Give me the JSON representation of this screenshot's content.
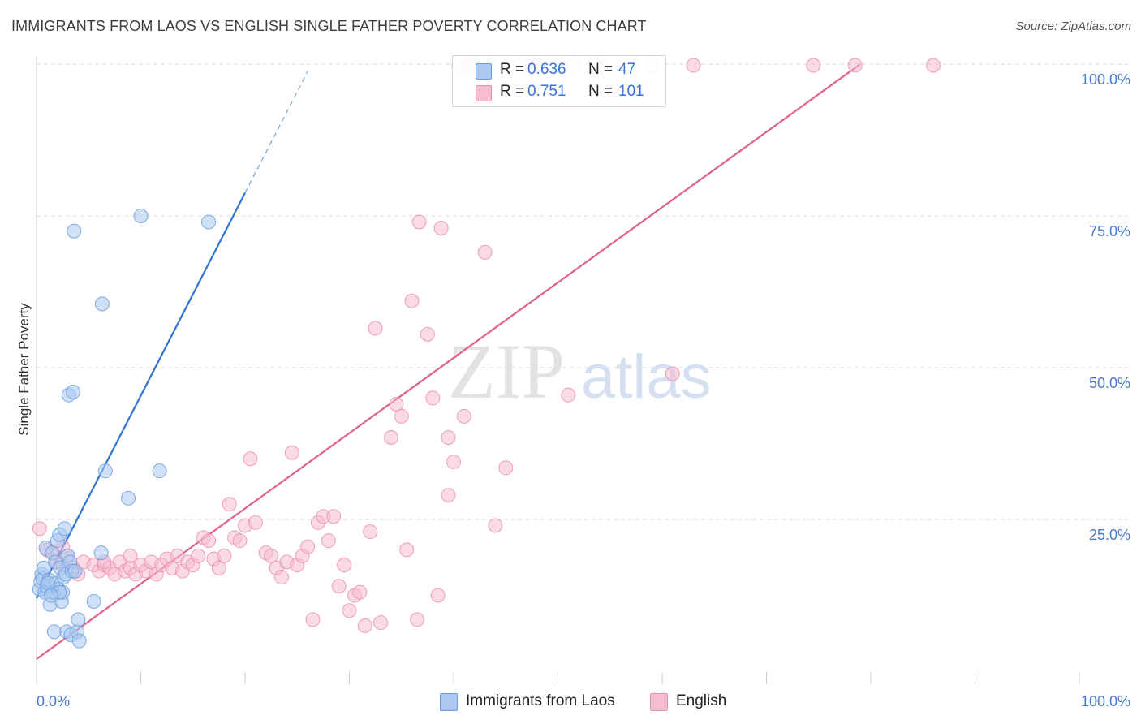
{
  "title": "IMMIGRANTS FROM LAOS VS ENGLISH SINGLE FATHER POVERTY CORRELATION CHART",
  "source": "Source: ZipAtlas.com",
  "watermark": {
    "zip": "ZIP",
    "atlas": "atlas"
  },
  "legend": {
    "rows": [
      {
        "r_label": "R =",
        "r_value": "0.636",
        "n_label": "N =",
        "n_value": "47"
      },
      {
        "r_label": "R =",
        "r_value": "0.751",
        "n_label": "N =",
        "n_value": "101"
      }
    ]
  },
  "bottom_legend": {
    "items": [
      {
        "label": "Immigrants from Laos"
      },
      {
        "label": "English"
      }
    ]
  },
  "colors": {
    "blue_fill": "#aac8f0",
    "blue_stroke": "#6a9ee0",
    "blue_line": "#2f74d0",
    "pink_fill": "#f6bcd0",
    "pink_stroke": "#e890b0",
    "pink_line": "#e0608a",
    "grid": "#dddddd",
    "tick_label": "#4a78c8"
  },
  "chart_data": {
    "type": "scatter",
    "title": "IMMIGRANTS FROM LAOS VS ENGLISH SINGLE FATHER POVERTY CORRELATION CHART",
    "xlabel": "",
    "ylabel": "Single Father Poverty",
    "xlim": [
      0,
      100
    ],
    "ylim": [
      0,
      100
    ],
    "x_tick_labels": [
      "0.0%",
      "100.0%"
    ],
    "y_ticks": [
      25,
      50,
      75,
      100
    ],
    "y_tick_labels": [
      "25.0%",
      "50.0%",
      "75.0%",
      "100.0%"
    ],
    "grid": true,
    "series": [
      {
        "name": "Immigrants from Laos",
        "color": "#aac8f0",
        "R": 0.636,
        "N": 47,
        "trend": {
          "x": [
            0,
            20
          ],
          "y": [
            12.0,
            78.8
          ],
          "dashed_extension": {
            "x": [
              20,
              26
            ],
            "y": [
              78.8,
              98.8
            ]
          }
        },
        "points": [
          [
            0.3,
            13.5
          ],
          [
            0.4,
            14.8
          ],
          [
            0.5,
            16.0
          ],
          [
            0.6,
            15.2
          ],
          [
            0.7,
            17.0
          ],
          [
            0.8,
            13.0
          ],
          [
            0.9,
            20.3
          ],
          [
            1.0,
            14.0
          ],
          [
            1.2,
            15.0
          ],
          [
            1.3,
            11.0
          ],
          [
            1.5,
            19.5
          ],
          [
            1.6,
            13.0
          ],
          [
            1.7,
            6.5
          ],
          [
            1.8,
            18.0
          ],
          [
            1.9,
            14.5
          ],
          [
            2.0,
            21.5
          ],
          [
            2.1,
            13.5
          ],
          [
            2.2,
            22.5
          ],
          [
            2.3,
            17.0
          ],
          [
            2.4,
            11.5
          ],
          [
            2.5,
            13.0
          ],
          [
            2.6,
            15.5
          ],
          [
            2.7,
            23.5
          ],
          [
            2.8,
            16.0
          ],
          [
            2.9,
            6.5
          ],
          [
            3.0,
            19.0
          ],
          [
            3.1,
            45.5
          ],
          [
            3.2,
            18.0
          ],
          [
            3.3,
            6.0
          ],
          [
            3.4,
            16.5
          ],
          [
            3.5,
            46.0
          ],
          [
            3.6,
            72.5
          ],
          [
            3.7,
            16.5
          ],
          [
            3.9,
            6.5
          ],
          [
            4.0,
            8.5
          ],
          [
            4.1,
            5.0
          ],
          [
            5.5,
            11.5
          ],
          [
            6.2,
            19.5
          ],
          [
            6.3,
            60.5
          ],
          [
            6.6,
            33.0
          ],
          [
            8.8,
            28.5
          ],
          [
            10.0,
            75.0
          ],
          [
            11.8,
            33.0
          ],
          [
            16.5,
            74.0
          ],
          [
            1.1,
            14.5
          ],
          [
            2.2,
            13.0
          ],
          [
            1.4,
            12.5
          ]
        ]
      },
      {
        "name": "English",
        "color": "#f6bcd0",
        "R": 0.751,
        "N": 101,
        "trend": {
          "x": [
            0,
            79
          ],
          "y": [
            2.0,
            100.0
          ]
        },
        "points": [
          [
            0.3,
            23.5
          ],
          [
            1.0,
            20.0
          ],
          [
            1.5,
            19.5
          ],
          [
            2.0,
            18.0
          ],
          [
            2.5,
            17.5
          ],
          [
            3.0,
            19.0
          ],
          [
            3.5,
            17.0
          ],
          [
            4.0,
            16.0
          ],
          [
            4.5,
            18.0
          ],
          [
            5.5,
            17.5
          ],
          [
            6.0,
            16.5
          ],
          [
            6.5,
            17.5
          ],
          [
            7.0,
            17.0
          ],
          [
            7.5,
            16.0
          ],
          [
            8.0,
            18.0
          ],
          [
            8.5,
            16.5
          ],
          [
            9.0,
            17.0
          ],
          [
            9.5,
            16.0
          ],
          [
            10.0,
            17.5
          ],
          [
            10.5,
            16.5
          ],
          [
            11.0,
            18.0
          ],
          [
            11.5,
            16.0
          ],
          [
            12.0,
            17.5
          ],
          [
            12.5,
            18.5
          ],
          [
            13.0,
            17.0
          ],
          [
            13.5,
            19.0
          ],
          [
            14.0,
            16.5
          ],
          [
            14.5,
            18.0
          ],
          [
            15.0,
            17.5
          ],
          [
            15.5,
            19.0
          ],
          [
            16.0,
            22.0
          ],
          [
            16.5,
            21.5
          ],
          [
            17.0,
            18.5
          ],
          [
            17.5,
            17.0
          ],
          [
            18.0,
            19.0
          ],
          [
            18.5,
            27.5
          ],
          [
            19.0,
            22.0
          ],
          [
            19.5,
            21.5
          ],
          [
            20.0,
            24.0
          ],
          [
            20.5,
            35.0
          ],
          [
            21.0,
            24.5
          ],
          [
            22.0,
            19.5
          ],
          [
            22.5,
            19.0
          ],
          [
            23.0,
            17.0
          ],
          [
            23.5,
            15.5
          ],
          [
            24.0,
            18.0
          ],
          [
            24.5,
            36.0
          ],
          [
            25.0,
            17.5
          ],
          [
            25.5,
            19.0
          ],
          [
            26.0,
            20.5
          ],
          [
            26.5,
            8.5
          ],
          [
            27.0,
            24.5
          ],
          [
            27.5,
            25.5
          ],
          [
            28.0,
            21.5
          ],
          [
            28.5,
            25.5
          ],
          [
            29.0,
            14.0
          ],
          [
            29.5,
            17.5
          ],
          [
            30.0,
            10.0
          ],
          [
            30.5,
            12.5
          ],
          [
            31.0,
            13.0
          ],
          [
            31.5,
            7.5
          ],
          [
            32.0,
            23.0
          ],
          [
            32.5,
            56.5
          ],
          [
            33.0,
            8.0
          ],
          [
            34.0,
            38.5
          ],
          [
            34.5,
            44.0
          ],
          [
            35.0,
            42.0
          ],
          [
            35.5,
            20.0
          ],
          [
            36.0,
            61.0
          ],
          [
            36.5,
            8.5
          ],
          [
            36.7,
            74.0
          ],
          [
            37.5,
            55.5
          ],
          [
            38.0,
            45.0
          ],
          [
            38.5,
            12.5
          ],
          [
            38.8,
            73.0
          ],
          [
            39.5,
            29.0
          ],
          [
            39.5,
            38.5
          ],
          [
            40.0,
            34.5
          ],
          [
            40.5,
            99.8
          ],
          [
            41.0,
            42.0
          ],
          [
            41.5,
            99.8
          ],
          [
            42.0,
            99.8
          ],
          [
            43.0,
            69.0
          ],
          [
            43.5,
            99.8
          ],
          [
            44.0,
            24.0
          ],
          [
            45.0,
            33.5
          ],
          [
            46.5,
            99.8
          ],
          [
            47.5,
            99.8
          ],
          [
            48.0,
            99.8
          ],
          [
            51.0,
            45.5
          ],
          [
            51.5,
            99.8
          ],
          [
            54.0,
            99.8
          ],
          [
            59.0,
            99.8
          ],
          [
            61.0,
            49.0
          ],
          [
            63.0,
            99.8
          ],
          [
            74.5,
            99.8
          ],
          [
            78.5,
            99.8
          ],
          [
            86.0,
            99.8
          ],
          [
            2.5,
            20.5
          ],
          [
            6.5,
            18.0
          ],
          [
            9.0,
            19.0
          ]
        ]
      }
    ]
  }
}
